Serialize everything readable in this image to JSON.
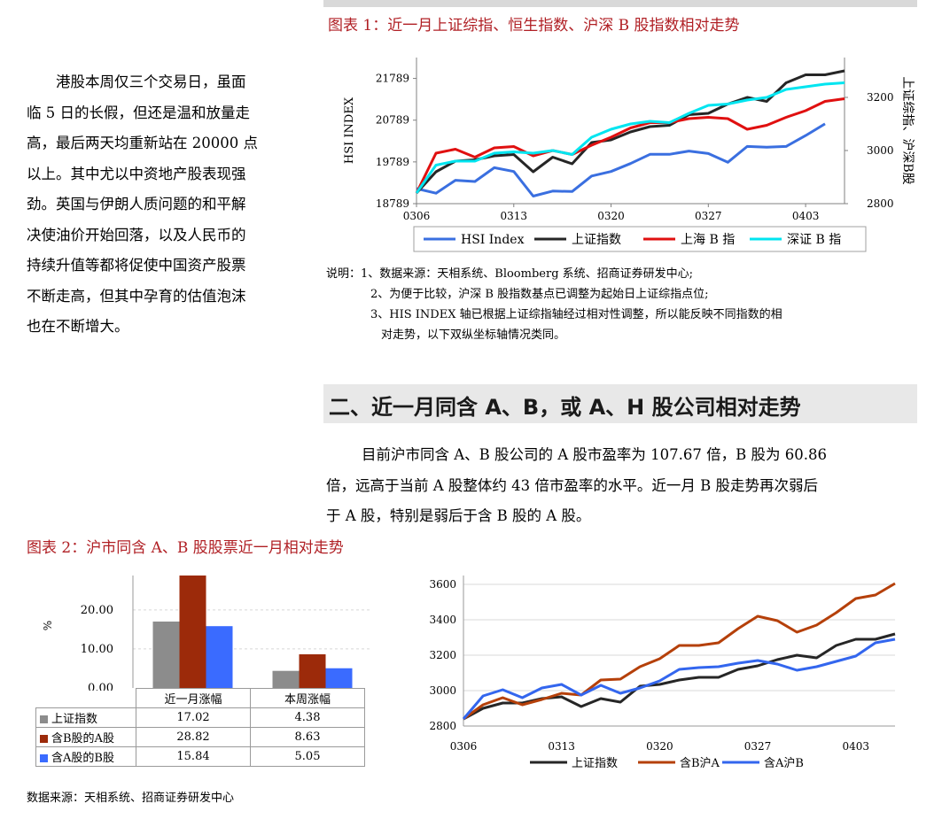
{
  "left_paragraph": {
    "lines": [
      "港股本周仅三个交易日，虽面",
      "临 5 日的长假，但还是温和放量走",
      "高，最后两天均重新站在 20000 点",
      "以上。其中尤以中资地产股表现强",
      "劲。英国与伊朗人质问题的和平解",
      "决使油价开始回落，以及人民币的",
      "持续升值等都将促使中国资产股票",
      "不断走高，但其中孕育的估值泡沫",
      "也在不断增大。"
    ]
  },
  "figure1": {
    "title": "图表 1：近一月上证综指、恒生指数、沪深 B 股指数相对走势",
    "notes": [
      "说明：1、数据来源：天相系统、Bloomberg 系统、招商证券研发中心;",
      "2、为便于比较，沪深 B 股指数基点已调整为起始日上证综指点位;",
      "3、HIS INDEX 轴已根据上证综指轴经过相对性调整，所以能反映不同指数的相",
      "对走势，以下双纵坐标轴情况类同。"
    ]
  },
  "section": {
    "heading": "二、近一月同含 A、B，或 A、H 股公司相对走势",
    "paragraph_lines": [
      "目前沪市同含 A、B 股公司的 A 股市盈率为 107.67 倍，B 股为 60.86",
      "倍，远高于当前 A 股整体约 43 倍市盈率的水平。近一月 B 股走势再次弱后",
      "于 A 股，特别是弱后于含 B 股的 A 股。"
    ]
  },
  "figure2": {
    "title": "图表 2：沪市同含 A、B 股股票近一月相对走势",
    "source": "数据来源：天相系统、招商证券研发中心"
  },
  "chart_data": [
    {
      "type": "line",
      "x": [
        "0306",
        "0307",
        "0308",
        "0309",
        "0312",
        "0313",
        "0314",
        "0315",
        "0316",
        "0319",
        "0320",
        "0321",
        "0322",
        "0323",
        "0326",
        "0327",
        "0328",
        "0329",
        "0330",
        "0402",
        "0403",
        "0404",
        "0405"
      ],
      "xticks": [
        "0306",
        "0313",
        "0320",
        "0327",
        "0403"
      ],
      "ylabel_left": "HSI INDEX",
      "ylabel_right": "上证综指、沪深B股",
      "yticks_left": [
        "18789",
        "19789",
        "20789",
        "21789"
      ],
      "ylim_left": [
        18789,
        22289
      ],
      "yticks_right": [
        "2800",
        "3000",
        "3200"
      ],
      "ylim_right": [
        2800,
        3350
      ],
      "legend_position": "bottom",
      "series": [
        {
          "name": "HSI  Index",
          "axis": "left",
          "color": "#3a6fe0",
          "values": [
            19150,
            19040,
            19350,
            19320,
            19650,
            19560,
            18970,
            19090,
            19080,
            19450,
            19560,
            19750,
            19970,
            19970,
            20050,
            19990,
            19780,
            20160,
            20140,
            20160,
            20420,
            20700,
            null
          ]
        },
        {
          "name": "上证指数",
          "axis": "right",
          "color": "#262626",
          "values": [
            2840,
            2920,
            2960,
            2965,
            2980,
            2985,
            2920,
            2975,
            2950,
            3030,
            3040,
            3070,
            3090,
            3095,
            3135,
            3140,
            3175,
            3200,
            3185,
            3255,
            3285,
            3285,
            3300
          ]
        },
        {
          "name": "上海 B 指",
          "axis": "right",
          "color": "#e01010",
          "values": [
            2840,
            2990,
            3005,
            2975,
            3010,
            3015,
            2980,
            3000,
            2985,
            3020,
            3050,
            3085,
            3105,
            3105,
            3120,
            3125,
            3120,
            3080,
            3095,
            3125,
            3150,
            3185,
            3195
          ]
        },
        {
          "name": "深证 B 指",
          "axis": "right",
          "color": "#00e5f0",
          "values": [
            2840,
            2945,
            2960,
            2960,
            2990,
            2995,
            2990,
            3000,
            2985,
            3050,
            3080,
            3100,
            3110,
            3105,
            3140,
            3170,
            3175,
            3190,
            3200,
            3230,
            3240,
            3250,
            3255
          ]
        }
      ]
    },
    {
      "type": "bar",
      "categories": [
        "近一月涨幅",
        "本周涨幅"
      ],
      "ylabel": "%",
      "yticks": [
        "0.00",
        "10.00",
        "20.00"
      ],
      "ylim": [
        0,
        28.82
      ],
      "series": [
        {
          "name": "上证指数",
          "color": "#8c8c8c",
          "values": [
            17.02,
            4.38
          ],
          "labels": [
            "17.02",
            "4.38"
          ]
        },
        {
          "name": "含B股的A股",
          "color": "#9c2a0a",
          "values": [
            28.82,
            8.63
          ],
          "labels": [
            "28.82",
            "8.63"
          ]
        },
        {
          "name": "含A股的B股",
          "color": "#3a6bff",
          "values": [
            15.84,
            5.05
          ],
          "labels": [
            "15.84",
            "5.05"
          ]
        }
      ]
    },
    {
      "type": "line",
      "x": [
        "0306",
        "0307",
        "0308",
        "0309",
        "0312",
        "0313",
        "0314",
        "0315",
        "0316",
        "0319",
        "0320",
        "0321",
        "0322",
        "0323",
        "0326",
        "0327",
        "0328",
        "0329",
        "0330",
        "0402",
        "0403",
        "0404",
        "0405"
      ],
      "xticks": [
        "0306",
        "0313",
        "0320",
        "0327",
        "0403"
      ],
      "yticks": [
        "2800",
        "3000",
        "3200",
        "3400",
        "3600"
      ],
      "ylim": [
        2800,
        3650
      ],
      "legend_position": "bottom",
      "series": [
        {
          "name": "上证指数",
          "color": "#262626",
          "values": [
            2840,
            2900,
            2930,
            2930,
            2955,
            2965,
            2910,
            2955,
            2935,
            3025,
            3035,
            3060,
            3075,
            3075,
            3120,
            3140,
            3175,
            3200,
            3185,
            3255,
            3290,
            3290,
            3320
          ]
        },
        {
          "name": "含B沪A",
          "color": "#b5400a",
          "values": [
            2840,
            2920,
            2960,
            2920,
            2950,
            2985,
            2975,
            3060,
            3065,
            3135,
            3180,
            3255,
            3255,
            3270,
            3350,
            3420,
            3395,
            3330,
            3370,
            3440,
            3520,
            3540,
            3605
          ]
        },
        {
          "name": "含A沪B",
          "color": "#3366ee",
          "values": [
            2840,
            2970,
            3005,
            2960,
            3015,
            3035,
            2975,
            3030,
            2985,
            3015,
            3055,
            3120,
            3130,
            3135,
            3155,
            3170,
            3150,
            3115,
            3135,
            3165,
            3195,
            3270,
            3290
          ]
        }
      ]
    }
  ]
}
